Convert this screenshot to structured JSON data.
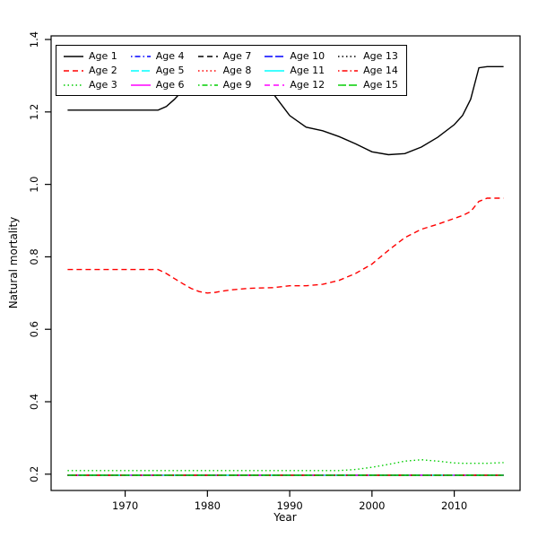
{
  "chart_data": {
    "type": "line",
    "title": "",
    "xlabel": "Year",
    "ylabel": "Natural mortality",
    "xlim": [
      1963,
      2016
    ],
    "ylim": [
      0.2,
      1.4
    ],
    "grid": false,
    "legend": {
      "position": "top-left",
      "columns": 5,
      "rows": 3,
      "order": "column-major"
    },
    "xticks": [
      {
        "value": 1970,
        "label": "1970"
      },
      {
        "value": 1980,
        "label": "1980"
      },
      {
        "value": 1990,
        "label": "1990"
      },
      {
        "value": 2000,
        "label": "2000"
      },
      {
        "value": 2010,
        "label": "2010"
      }
    ],
    "yticks": [
      {
        "value": 0.2,
        "label": "0.2"
      },
      {
        "value": 0.4,
        "label": "0.4"
      },
      {
        "value": 0.6,
        "label": "0.6"
      },
      {
        "value": 0.8,
        "label": "0.8"
      },
      {
        "value": 1.0,
        "label": "1.0"
      },
      {
        "value": 1.2,
        "label": "1.2"
      },
      {
        "value": 1.4,
        "label": "1.4"
      }
    ],
    "x": [
      1963,
      1966,
      1969,
      1972,
      1974,
      1975,
      1976,
      1977,
      1978,
      1979,
      1980,
      1981,
      1982,
      1983,
      1984,
      1985,
      1986,
      1988,
      1990,
      1992,
      1994,
      1996,
      1998,
      2000,
      2002,
      2004,
      2006,
      2008,
      2010,
      2011,
      2012,
      2013,
      2014,
      2016
    ],
    "series": [
      {
        "name": "Age 1",
        "color": "#000000",
        "linetype": "solid",
        "values": [
          1.205,
          1.205,
          1.205,
          1.205,
          1.205,
          1.215,
          1.235,
          1.26,
          1.285,
          1.31,
          1.33,
          1.342,
          1.348,
          1.35,
          1.345,
          1.332,
          1.312,
          1.25,
          1.19,
          1.158,
          1.148,
          1.132,
          1.112,
          1.09,
          1.082,
          1.085,
          1.103,
          1.13,
          1.165,
          1.19,
          1.235,
          1.322,
          1.325,
          1.325
        ]
      },
      {
        "name": "Age 2",
        "color": "#FF0000",
        "linetype": "dashed",
        "values": [
          0.765,
          0.765,
          0.765,
          0.765,
          0.765,
          0.754,
          0.74,
          0.726,
          0.713,
          0.704,
          0.7,
          0.702,
          0.706,
          0.709,
          0.711,
          0.713,
          0.714,
          0.715,
          0.72,
          0.72,
          0.724,
          0.735,
          0.754,
          0.78,
          0.818,
          0.853,
          0.876,
          0.89,
          0.906,
          0.914,
          0.925,
          0.953,
          0.962,
          0.962
        ]
      },
      {
        "name": "Age 3",
        "color": "#00CD00",
        "linetype": "dotted",
        "values": [
          0.21,
          0.21,
          0.21,
          0.21,
          0.21,
          0.21,
          0.21,
          0.21,
          0.21,
          0.21,
          0.21,
          0.21,
          0.21,
          0.21,
          0.21,
          0.21,
          0.21,
          0.21,
          0.21,
          0.21,
          0.21,
          0.21,
          0.213,
          0.219,
          0.227,
          0.236,
          0.24,
          0.236,
          0.231,
          0.23,
          0.23,
          0.23,
          0.23,
          0.232
        ]
      },
      {
        "name": "Age 4",
        "color": "#0000FF",
        "linetype": "dotdash",
        "constant": 0.197
      },
      {
        "name": "Age 5",
        "color": "#00FFFF",
        "linetype": "longdash",
        "constant": 0.197
      },
      {
        "name": "Age 6",
        "color": "#FF00FF",
        "linetype": "solid",
        "constant": 0.197
      },
      {
        "name": "Age 7",
        "color": "#000000",
        "linetype": "dashed",
        "constant": 0.197
      },
      {
        "name": "Age 8",
        "color": "#FF0000",
        "linetype": "dotted",
        "constant": 0.197
      },
      {
        "name": "Age 9",
        "color": "#00CD00",
        "linetype": "dotdash",
        "constant": 0.197
      },
      {
        "name": "Age 10",
        "color": "#0000FF",
        "linetype": "longdash",
        "constant": 0.197
      },
      {
        "name": "Age 11",
        "color": "#00FFFF",
        "linetype": "solid",
        "constant": 0.197
      },
      {
        "name": "Age 12",
        "color": "#FF00FF",
        "linetype": "dashed",
        "constant": 0.197
      },
      {
        "name": "Age 13",
        "color": "#000000",
        "linetype": "dotted",
        "constant": 0.197
      },
      {
        "name": "Age 14",
        "color": "#FF0000",
        "linetype": "dotdash",
        "constant": 0.197
      },
      {
        "name": "Age 15",
        "color": "#00CD00",
        "linetype": "longdash",
        "constant": 0.197
      }
    ]
  }
}
